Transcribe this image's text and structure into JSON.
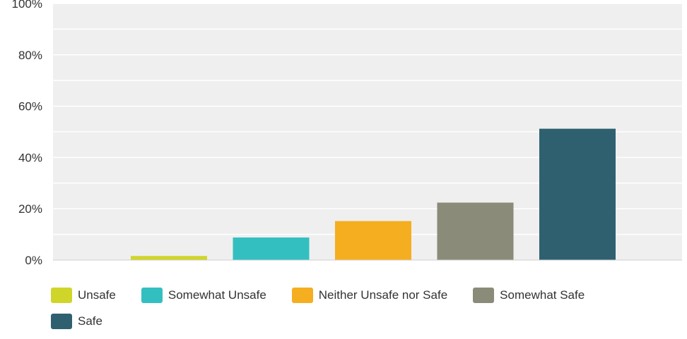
{
  "chart_data": {
    "type": "bar",
    "categories": [
      "Unsafe",
      "Somewhat Unsafe",
      "Neither Unsafe nor Safe",
      "Somewhat Safe",
      "Safe"
    ],
    "values": [
      1.6,
      8.8,
      15.2,
      22.4,
      51.2
    ],
    "colors": [
      "#d0d52a",
      "#33bfc0",
      "#f5ae20",
      "#8a8b79",
      "#2f6070"
    ],
    "ylim": [
      0,
      100
    ],
    "y_ticks": [
      "0%",
      "20%",
      "40%",
      "60%",
      "80%",
      "100%"
    ],
    "y_tick_values": [
      0,
      20,
      40,
      60,
      80,
      100
    ],
    "grid": true,
    "plot_background": "#efefef",
    "legend_position": "bottom",
    "title": "",
    "xlabel": "",
    "ylabel": ""
  }
}
